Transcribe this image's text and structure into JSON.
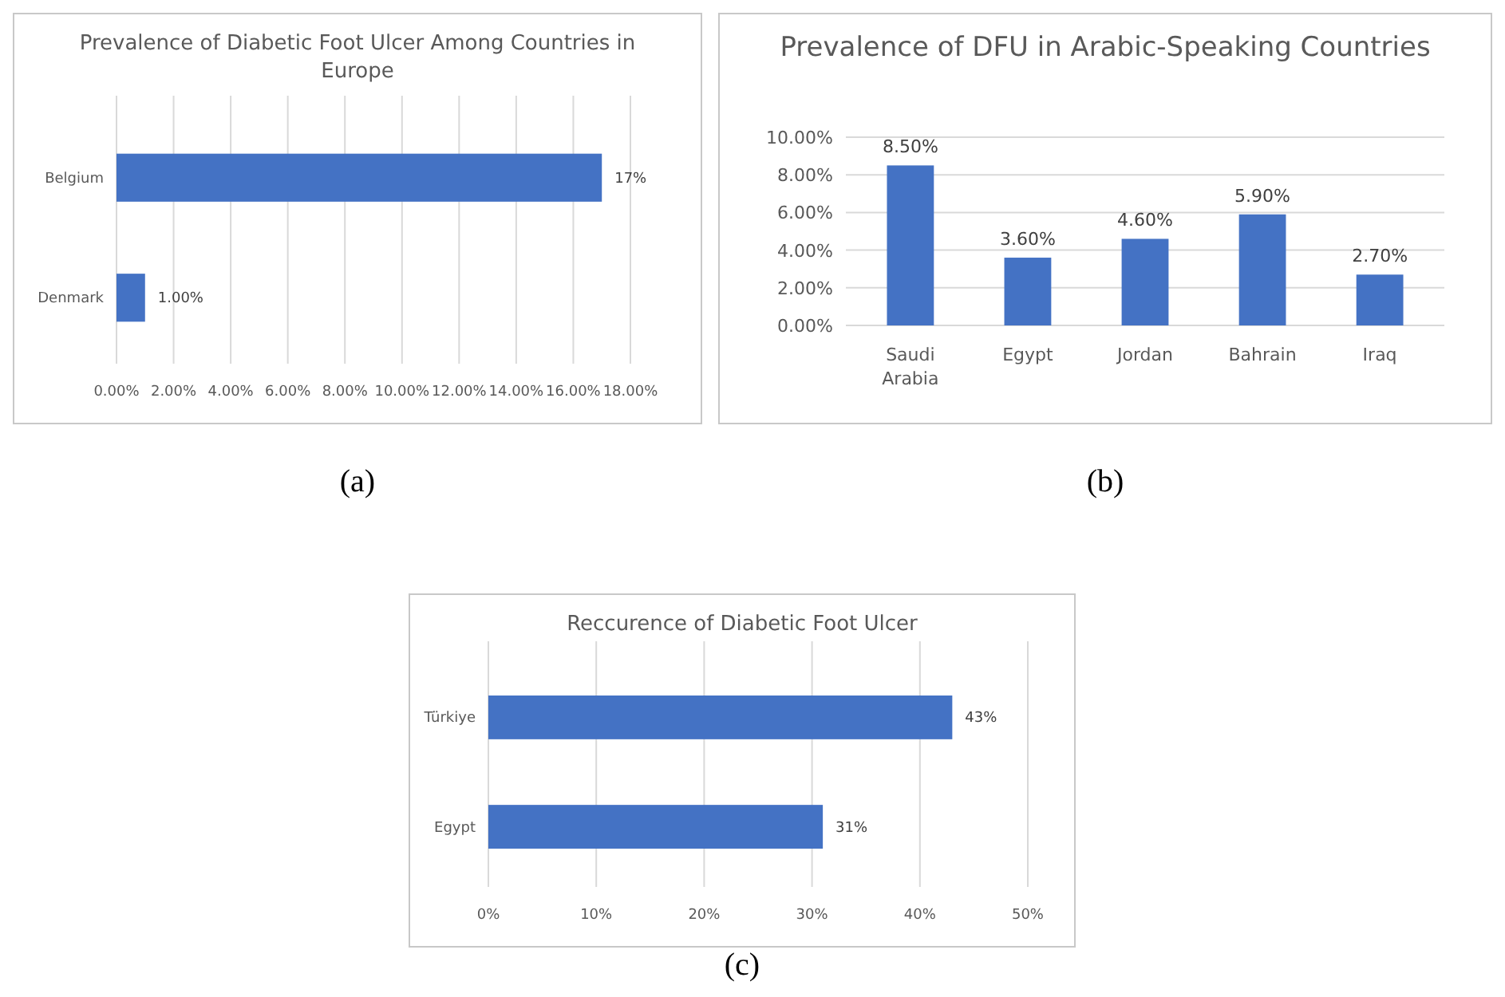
{
  "chart_data": [
    {
      "type": "bar",
      "orientation": "horizontal",
      "title": "Prevalence of Diabetic Foot Ulcer Among Countries in Europe",
      "categories": [
        "Belgium",
        "Denmark"
      ],
      "values": [
        17,
        1
      ],
      "value_labels": [
        "17%",
        "1.00%"
      ],
      "color": "#4472c4",
      "xlim": [
        0,
        18
      ],
      "xticks": [
        {
          "value": 0,
          "label": "0.00%"
        },
        {
          "value": 2,
          "label": "2.00%"
        },
        {
          "value": 4,
          "label": "4.00%"
        },
        {
          "value": 6,
          "label": "6.00%"
        },
        {
          "value": 8,
          "label": "8.00%"
        },
        {
          "value": 10,
          "label": "10.00%"
        },
        {
          "value": 12,
          "label": "12.00%"
        },
        {
          "value": 14,
          "label": "14.00%"
        },
        {
          "value": 16,
          "label": "16.00%"
        },
        {
          "value": 18,
          "label": "18.00%"
        }
      ],
      "grid": "x",
      "annotations": [
        "(a)"
      ]
    },
    {
      "type": "bar",
      "title": "Prevalence of DFU in Arabic-Speaking Countries",
      "categories": [
        "Saudi Arabia",
        "Egypt",
        "Jordan",
        "Bahrain",
        "Iraq"
      ],
      "values": [
        8.5,
        3.6,
        4.6,
        5.9,
        2.7
      ],
      "value_labels": [
        "8.50%",
        "3.60%",
        "4.60%",
        "5.90%",
        "2.70%"
      ],
      "color": "#4472c4",
      "ylim": [
        0,
        10
      ],
      "yticks": [
        {
          "value": 0,
          "label": "0.00%"
        },
        {
          "value": 2,
          "label": "2.00%"
        },
        {
          "value": 4,
          "label": "4.00%"
        },
        {
          "value": 6,
          "label": "6.00%"
        },
        {
          "value": 8,
          "label": "8.00%"
        },
        {
          "value": 10,
          "label": "10.00%"
        }
      ],
      "grid": "y",
      "annotations": [
        "(b)"
      ]
    },
    {
      "type": "bar",
      "orientation": "horizontal",
      "title": "Reccurence of Diabetic Foot Ulcer",
      "categories": [
        "Türkiye",
        "Egypt"
      ],
      "values": [
        43,
        31
      ],
      "value_labels": [
        "43%",
        "31%"
      ],
      "color": "#4472c4",
      "xlim": [
        0,
        50
      ],
      "xticks": [
        {
          "value": 0,
          "label": "0%"
        },
        {
          "value": 10,
          "label": "10%"
        },
        {
          "value": 20,
          "label": "20%"
        },
        {
          "value": 30,
          "label": "30%"
        },
        {
          "value": 40,
          "label": "40%"
        },
        {
          "value": 50,
          "label": "50%"
        }
      ],
      "grid": "x",
      "annotations": [
        "(c)"
      ]
    }
  ]
}
